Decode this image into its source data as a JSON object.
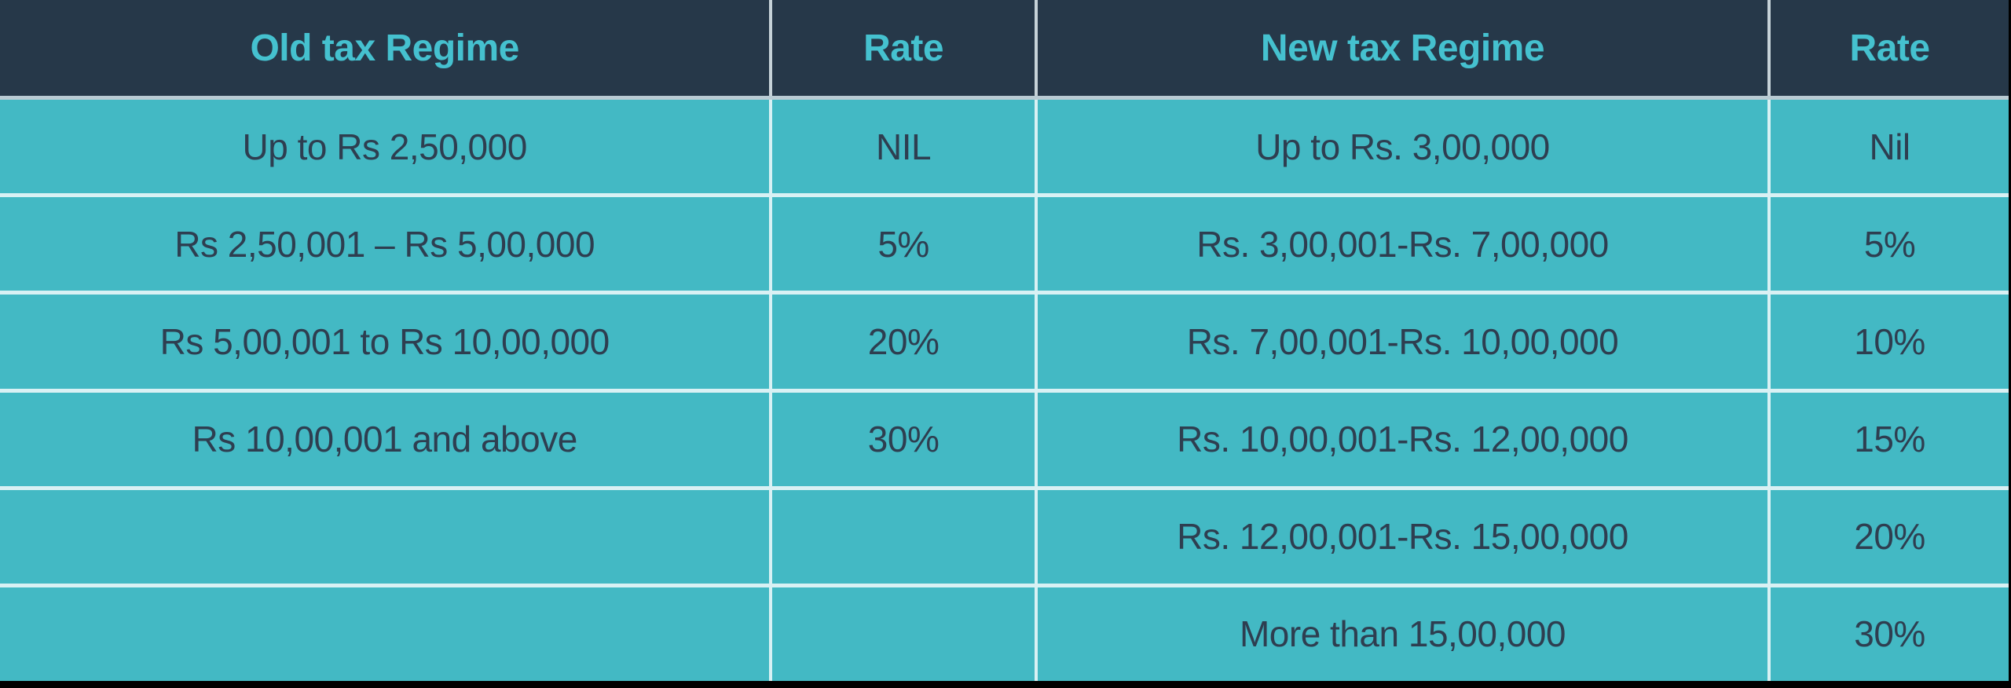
{
  "chart_data": {
    "type": "table",
    "columns": [
      "Old tax Regime",
      "Rate",
      "New tax Regime",
      "Rate"
    ],
    "rows": [
      [
        "Up to Rs 2,50,000",
        "NIL",
        "Up to Rs. 3,00,000",
        "Nil"
      ],
      [
        "Rs 2,50,001 – Rs 5,00,000",
        "5%",
        "Rs. 3,00,001-Rs. 7,00,000",
        "5%"
      ],
      [
        "Rs 5,00,001 to Rs 10,00,000",
        "20%",
        "Rs. 7,00,001-Rs. 10,00,000",
        "10%"
      ],
      [
        "Rs 10,00,001 and above",
        "30%",
        "Rs. 10,00,001-Rs. 12,00,000",
        "15%"
      ],
      [
        "",
        "",
        "Rs. 12,00,001-Rs. 15,00,000",
        "20%"
      ],
      [
        "",
        "",
        "More than 15,00,000",
        "30%"
      ]
    ],
    "layout_hints": {
      "column_width_percent": [
        38.3,
        13.2,
        36.5,
        12.0
      ],
      "grid": "on"
    }
  },
  "colors": {
    "header_bg": "#263849",
    "header_text": "#45c1cf",
    "cell_bg": "#43b9c4",
    "cell_text": "#2e3e50",
    "grid_line": "#d9f1f4",
    "header_divider": "#b9cbd3",
    "outer_border": "#000000"
  }
}
